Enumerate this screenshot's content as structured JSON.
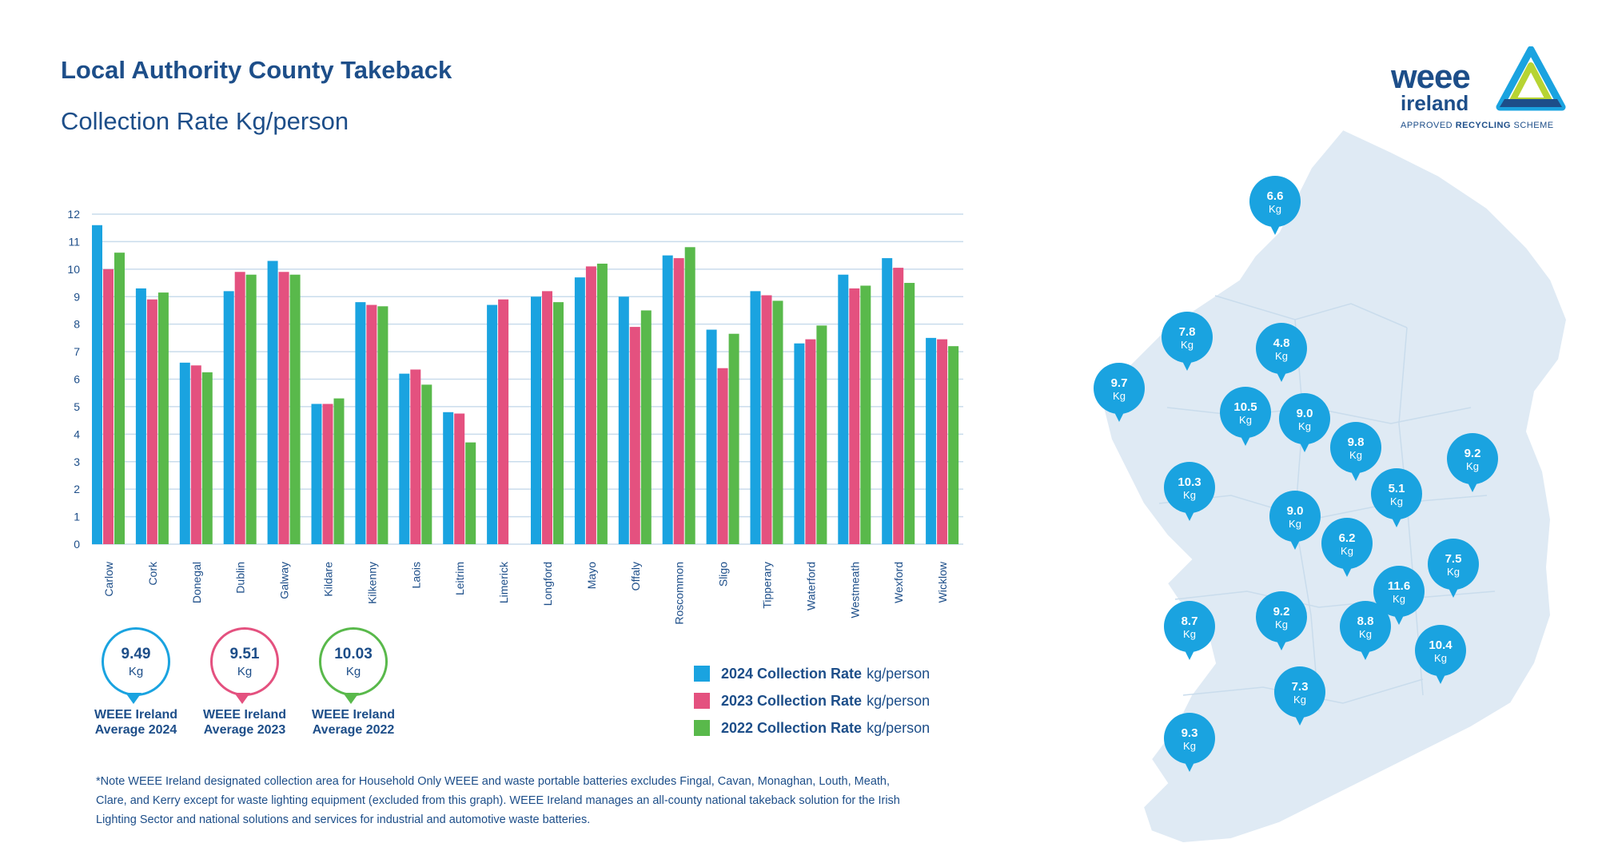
{
  "header": {
    "title": "Local Authority County Takeback",
    "subtitle": "Collection Rate Kg/person"
  },
  "colors": {
    "c2024": "#1aa3e0",
    "c2023": "#e4517f",
    "c2022": "#59b94b",
    "grid": "#c9dcec",
    "text": "#1d4e89",
    "map": "#dfeaf4",
    "pin": "#1aa3e0"
  },
  "chart_data": {
    "type": "bar",
    "categories": [
      "Carlow",
      "Cork",
      "Donegal",
      "Dublin",
      "Galway",
      "Kildare",
      "Kilkenny",
      "Laois",
      "Leitrim",
      "Limerick",
      "Longford",
      "Mayo",
      "Offaly",
      "Roscommon",
      "Sligo",
      "Tipperary",
      "Waterford",
      "Westmeath",
      "Wexford",
      "Wicklow"
    ],
    "series": [
      {
        "name": "2024 Collection Rate",
        "values": [
          11.6,
          9.3,
          6.6,
          9.2,
          10.3,
          5.1,
          8.8,
          6.2,
          4.8,
          8.7,
          9.0,
          9.7,
          9.0,
          10.5,
          7.8,
          9.2,
          7.3,
          9.8,
          10.4,
          7.5
        ]
      },
      {
        "name": "2023 Collection Rate",
        "values": [
          10.0,
          8.9,
          6.5,
          9.9,
          9.9,
          5.1,
          8.7,
          6.35,
          4.75,
          8.9,
          9.2,
          10.1,
          7.9,
          10.4,
          6.4,
          9.05,
          7.45,
          9.3,
          10.05,
          7.45
        ]
      },
      {
        "name": "2022 Collection Rate",
        "values": [
          10.6,
          9.15,
          6.25,
          9.8,
          9.8,
          5.3,
          8.65,
          5.8,
          3.7,
          null,
          8.8,
          10.2,
          8.5,
          10.8,
          7.65,
          8.85,
          7.95,
          9.4,
          9.5,
          7.2
        ]
      }
    ],
    "yticks": [
      "0",
      "1",
      "2",
      "3",
      "4",
      "5",
      "6",
      "7",
      "8",
      "9",
      "10",
      "11",
      "12"
    ],
    "ylim": [
      0,
      12
    ],
    "grid": true,
    "legend_unit": "kg/person",
    "legend_placement": "bottom-right"
  },
  "averages": [
    {
      "value": "9.49",
      "unit": "Kg",
      "label1": "WEEE Ireland",
      "label2": "Average 2024",
      "color": "#1aa3e0"
    },
    {
      "value": "9.51",
      "unit": "Kg",
      "label1": "WEEE Ireland",
      "label2": "Average 2023",
      "color": "#e4517f"
    },
    {
      "value": "10.03",
      "unit": "Kg",
      "label1": "WEEE Ireland",
      "label2": "Average 2022",
      "color": "#59b94b"
    }
  ],
  "note": "*Note WEEE Ireland designated collection area for Household Only WEEE and waste portable batteries excludes Fingal, Cavan, Monaghan, Louth, Meath, Clare, and Kerry except for waste lighting equipment (excluded from this graph). WEEE Ireland manages an all-county national takeback solution for the Irish Lighting Sector and national solutions and services for industrial and automotive waste batteries.",
  "logo": {
    "weee": "weee",
    "ireland": "ireland",
    "tag_a": "APPROVED ",
    "tag_b": "RECYCLING",
    "tag_c": " SCHEME"
  },
  "map_pins": [
    {
      "value": "6.6",
      "unit": "Kg",
      "county": "Donegal"
    },
    {
      "value": "7.8",
      "unit": "Kg",
      "county": "Sligo"
    },
    {
      "value": "4.8",
      "unit": "Kg",
      "county": "Leitrim"
    },
    {
      "value": "9.7",
      "unit": "Kg",
      "county": "Mayo"
    },
    {
      "value": "10.5",
      "unit": "Kg",
      "county": "Roscommon"
    },
    {
      "value": "9.0",
      "unit": "Kg",
      "county": "Longford"
    },
    {
      "value": "9.8",
      "unit": "Kg",
      "county": "Westmeath"
    },
    {
      "value": "9.2",
      "unit": "Kg",
      "county": "Dublin"
    },
    {
      "value": "10.3",
      "unit": "Kg",
      "county": "Galway"
    },
    {
      "value": "9.0",
      "unit": "Kg",
      "county": "Offaly"
    },
    {
      "value": "5.1",
      "unit": "Kg",
      "county": "Kildare"
    },
    {
      "value": "6.2",
      "unit": "Kg",
      "county": "Laois"
    },
    {
      "value": "7.5",
      "unit": "Kg",
      "county": "Wicklow"
    },
    {
      "value": "11.6",
      "unit": "Kg",
      "county": "Carlow"
    },
    {
      "value": "8.7",
      "unit": "Kg",
      "county": "Limerick"
    },
    {
      "value": "9.2",
      "unit": "Kg",
      "county": "Tipperary"
    },
    {
      "value": "8.8",
      "unit": "Kg",
      "county": "Kilkenny"
    },
    {
      "value": "10.4",
      "unit": "Kg",
      "county": "Wexford"
    },
    {
      "value": "7.3",
      "unit": "Kg",
      "county": "Waterford"
    },
    {
      "value": "9.3",
      "unit": "Kg",
      "county": "Cork"
    }
  ]
}
